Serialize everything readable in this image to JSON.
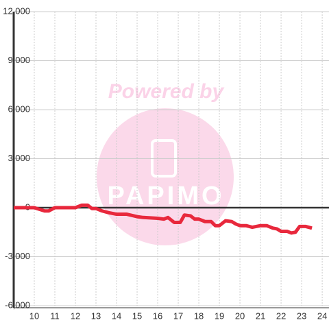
{
  "chart_data": {
    "type": "line",
    "x": [
      9.0,
      10.0,
      10.5,
      10.7,
      11.0,
      12.0,
      12.3,
      12.6,
      12.8,
      13.0,
      13.3,
      13.6,
      14.0,
      14.5,
      15.0,
      15.3,
      16.0,
      16.3,
      16.5,
      16.8,
      17.1,
      17.3,
      17.6,
      17.8,
      18.0,
      18.3,
      18.6,
      18.8,
      19.0,
      19.3,
      19.6,
      19.8,
      20.0,
      20.3,
      20.6,
      21.0,
      21.3,
      21.6,
      21.8,
      22.0,
      22.3,
      22.5,
      22.7,
      22.9,
      23.2,
      23.5
    ],
    "series": [
      {
        "color": "#e8283c",
        "values": [
          0,
          0,
          -200,
          -200,
          0,
          0,
          150,
          150,
          -50,
          -50,
          -200,
          -300,
          -400,
          -400,
          -550,
          -600,
          -650,
          -700,
          -600,
          -900,
          -900,
          -450,
          -500,
          -700,
          -700,
          -850,
          -850,
          -1100,
          -1100,
          -800,
          -850,
          -1000,
          -1100,
          -1100,
          -1200,
          -1100,
          -1100,
          -1250,
          -1300,
          -1450,
          -1450,
          -1550,
          -1500,
          -1150,
          -1150,
          -1250
        ]
      }
    ],
    "xlim": [
      9,
      24.33
    ],
    "xticks": [
      10,
      11,
      12,
      13,
      14,
      15,
      16,
      17,
      18,
      19,
      20,
      21,
      22,
      23,
      24
    ],
    "ylim": [
      -6000,
      12000
    ],
    "yticks": [
      {
        "value": -6000,
        "label": "-6,000"
      },
      {
        "value": -3000,
        "label": "-3,000"
      },
      0,
      {
        "value": 3000,
        "label": "3,000"
      },
      {
        "value": 6000,
        "label": "6,000"
      },
      {
        "value": 9000,
        "label": "9,000"
      },
      {
        "value": 12000,
        "label": "12,000"
      }
    ],
    "grid": true
  },
  "watermark": {
    "line1": "Powered by",
    "line2": "PAPIMO"
  }
}
